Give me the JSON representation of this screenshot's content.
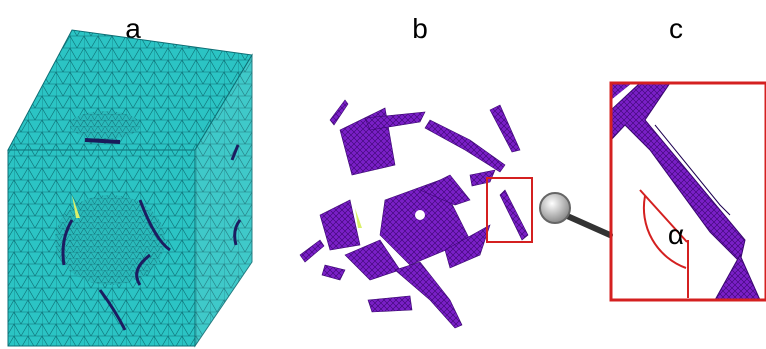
{
  "panels": [
    {
      "label": "a"
    },
    {
      "label": "b"
    },
    {
      "label": "c",
      "annotation": "α"
    }
  ]
}
